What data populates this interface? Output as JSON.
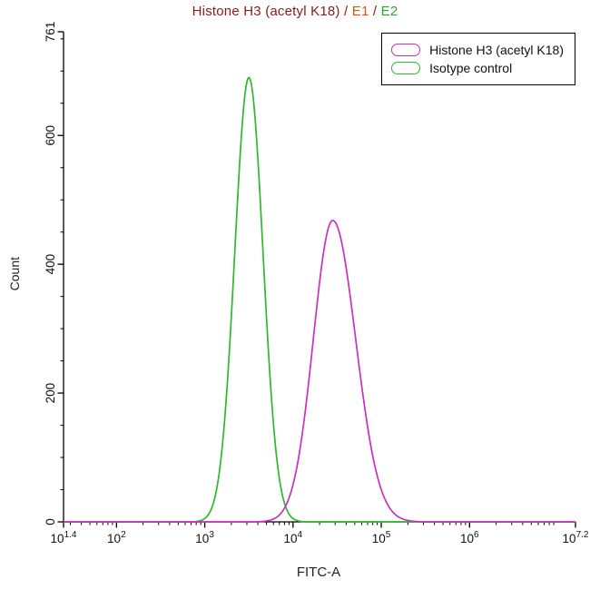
{
  "title": {
    "segments": [
      {
        "text": "Histone H3 (acetyl K18) ",
        "color": "#8B1A1A"
      },
      {
        "text": "/ ",
        "color": "#8B1A1A"
      },
      {
        "text": "E1",
        "color": "#E05206"
      },
      {
        "text": " / ",
        "color": "#8B1A1A"
      },
      {
        "text": "E2",
        "color": "#1FAF1F"
      }
    ]
  },
  "legend": {
    "items": [
      {
        "label": "Histone H3 (acetyl K18)",
        "color": "#CC2FBE"
      },
      {
        "label": "Isotype control",
        "color": "#2DB82D"
      }
    ]
  },
  "chart_data": {
    "type": "line",
    "title": "Histone H3 (acetyl K18) / E1 / E2",
    "xlabel": "FITC-A",
    "ylabel": "Count",
    "x_scale": "log10",
    "x_log_range": [
      1.4,
      7.2
    ],
    "ylim": [
      0,
      761
    ],
    "grid": false,
    "legend_position": "top-right",
    "x_ticks": [
      {
        "exponent": "1.4",
        "log": 1.4
      },
      {
        "exponent": "2",
        "log": 2
      },
      {
        "exponent": "3",
        "log": 3
      },
      {
        "exponent": "4",
        "log": 4
      },
      {
        "exponent": "5",
        "log": 5
      },
      {
        "exponent": "6",
        "log": 6
      },
      {
        "exponent": "7.2",
        "log": 7.2
      }
    ],
    "y_ticks": [
      0,
      200,
      400,
      600,
      761
    ],
    "y_minor_step": 50,
    "series": [
      {
        "name": "Isotype control",
        "color": "#2DB82D",
        "peak_x": 3160,
        "peak_count": 690,
        "gaussian_log10": {
          "mu": 3.5,
          "sigma_left": 0.16,
          "sigma_right": 0.16,
          "amplitude": 690
        }
      },
      {
        "name": "Histone H3 (acetyl K18)",
        "color": "#CC2FBE",
        "peak_x": 28200,
        "peak_count": 468,
        "gaussian_log10": {
          "mu": 4.45,
          "sigma_left": 0.22,
          "sigma_right": 0.26,
          "amplitude": 468
        }
      }
    ]
  }
}
